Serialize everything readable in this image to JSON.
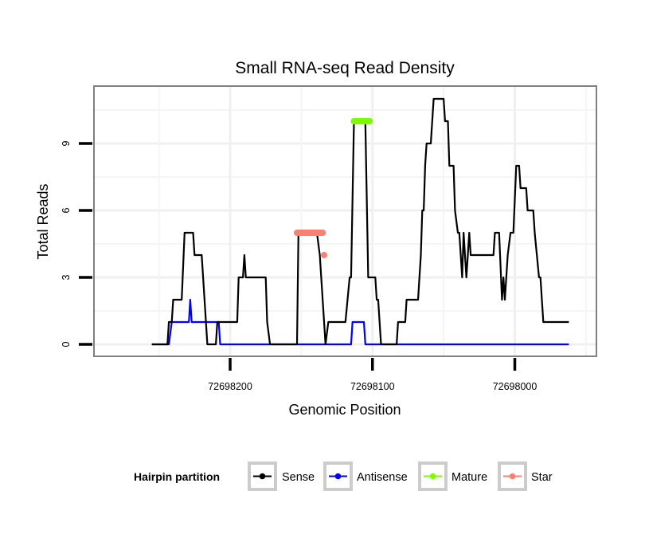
{
  "chart_data": {
    "type": "line",
    "title": "Small RNA-seq Read Density",
    "xlabel": "Genomic Position",
    "ylabel": "Total Reads",
    "x_reversed": true,
    "xlim": [
      72698265,
      72697910
    ],
    "ylim": [
      -0.5,
      11.5
    ],
    "x_ticks": [
      72698200,
      72698100,
      72698000
    ],
    "x_tick_labels": [
      "72698200",
      "72698100",
      "72698000"
    ],
    "y_ticks": [
      0,
      3,
      6,
      9
    ],
    "y_tick_labels": [
      "0",
      "3",
      "6",
      "9"
    ],
    "grid": true,
    "legend": {
      "title": "Hairpin partition",
      "position": "bottom",
      "entries": [
        {
          "label": "Sense",
          "color": "#000000"
        },
        {
          "label": "Antisense",
          "color": "#0000ff"
        },
        {
          "label": "Mature",
          "color": "#7cfc00"
        },
        {
          "label": "Star",
          "color": "#fa8072"
        }
      ]
    },
    "series": [
      {
        "name": "Sense",
        "color": "#000000",
        "points": [
          [
            72698255,
            0
          ],
          [
            72698244,
            0
          ],
          [
            72698243,
            1
          ],
          [
            72698241,
            1
          ],
          [
            72698240,
            2
          ],
          [
            72698234,
            2
          ],
          [
            72698232,
            5
          ],
          [
            72698226,
            5
          ],
          [
            72698225,
            4
          ],
          [
            72698220,
            4
          ],
          [
            72698216,
            0
          ],
          [
            72698210,
            0
          ],
          [
            72698209,
            1
          ],
          [
            72698195,
            1
          ],
          [
            72698194,
            3
          ],
          [
            72698191,
            3
          ],
          [
            72698190,
            4
          ],
          [
            72698189,
            3
          ],
          [
            72698175,
            3
          ],
          [
            72698174,
            1
          ],
          [
            72698172,
            0
          ],
          [
            72698153,
            0
          ],
          [
            72698152,
            5
          ],
          [
            72698139,
            5
          ],
          [
            72698137,
            4
          ],
          [
            72698133,
            0
          ],
          [
            72698131,
            1
          ],
          [
            72698119,
            1
          ],
          [
            72698116,
            3
          ],
          [
            72698115,
            3
          ],
          [
            72698113,
            10
          ],
          [
            72698105,
            10
          ],
          [
            72698103,
            3
          ],
          [
            72698098,
            3
          ],
          [
            72698097,
            2
          ],
          [
            72698096,
            2
          ],
          [
            72698094,
            0
          ],
          [
            72698083,
            0
          ],
          [
            72698082,
            1
          ],
          [
            72698077,
            1
          ],
          [
            72698076,
            2
          ],
          [
            72698068,
            2
          ],
          [
            72698066,
            4
          ],
          [
            72698065,
            6
          ],
          [
            72698064,
            6
          ],
          [
            72698063,
            8
          ],
          [
            72698062,
            9
          ],
          [
            72698059,
            9
          ],
          [
            72698057,
            11
          ],
          [
            72698050,
            11
          ],
          [
            72698049,
            10
          ],
          [
            72698047,
            10
          ],
          [
            72698046,
            8
          ],
          [
            72698043,
            8
          ],
          [
            72698042,
            6
          ],
          [
            72698040,
            5
          ],
          [
            72698039,
            5
          ],
          [
            72698037,
            3
          ],
          [
            72698036,
            5
          ],
          [
            72698035,
            4
          ],
          [
            72698034,
            3
          ],
          [
            72698032,
            5
          ],
          [
            72698031,
            4
          ],
          [
            72698015,
            4
          ],
          [
            72698014,
            5
          ],
          [
            72698011,
            5
          ],
          [
            72698009,
            2
          ],
          [
            72698008,
            3
          ],
          [
            72698007,
            2
          ],
          [
            72698006,
            3
          ],
          [
            72698005,
            4
          ],
          [
            72698003,
            5
          ],
          [
            72698001,
            5
          ],
          [
            72697999,
            8
          ],
          [
            72697997,
            8
          ],
          [
            72697996,
            7
          ],
          [
            72697992,
            7
          ],
          [
            72697991,
            6
          ],
          [
            72697987,
            6
          ],
          [
            72697986,
            5
          ],
          [
            72697983,
            3
          ],
          [
            72697982,
            3
          ],
          [
            72697980,
            1
          ],
          [
            72697962,
            1
          ]
        ]
      },
      {
        "name": "Antisense",
        "color": "#0000ff",
        "points": [
          [
            72698255,
            0
          ],
          [
            72698243,
            0
          ],
          [
            72698241,
            1
          ],
          [
            72698229,
            1
          ],
          [
            72698228,
            2
          ],
          [
            72698227,
            1
          ],
          [
            72698220,
            1
          ],
          [
            72698219,
            1
          ],
          [
            72698216,
            1
          ],
          [
            72698208,
            1
          ],
          [
            72698207,
            0
          ],
          [
            72698115,
            0
          ],
          [
            72698114,
            1
          ],
          [
            72698106,
            1
          ],
          [
            72698105,
            0
          ],
          [
            72697962,
            0
          ]
        ]
      },
      {
        "name": "Mature",
        "color": "#7cfc00",
        "points": [
          [
            72698113,
            10
          ],
          [
            72698102,
            10
          ]
        ]
      },
      {
        "name": "Star",
        "color": "#fa8072",
        "points": [
          [
            72698153,
            5
          ],
          [
            72698135,
            5
          ]
        ],
        "extra_points": [
          [
            72698134,
            4
          ]
        ]
      }
    ]
  }
}
